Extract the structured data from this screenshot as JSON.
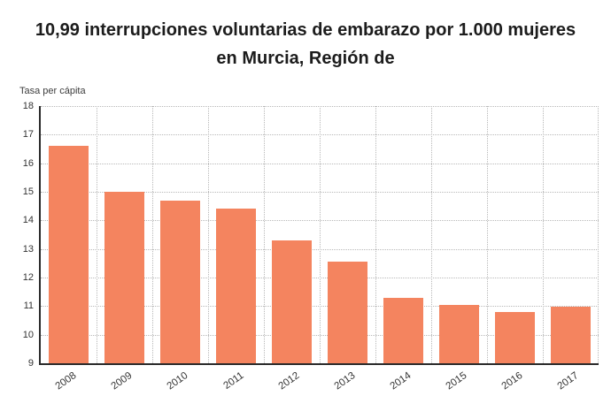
{
  "title": "10,99 interrupciones voluntarias de embarazo por 1.000 mujeres en Murcia, Región de",
  "chart_data": {
    "type": "bar",
    "title": "10,99 interrupciones voluntarias de embarazo por 1.000 mujeres en Murcia, Región de",
    "ylabel": "Tasa per cápita",
    "xlabel": "",
    "categories": [
      "2008",
      "2009",
      "2010",
      "2011",
      "2012",
      "2013",
      "2014",
      "2015",
      "2016",
      "2017"
    ],
    "values": [
      16.6,
      15.0,
      14.7,
      14.4,
      13.3,
      12.55,
      11.3,
      11.05,
      10.8,
      10.99
    ],
    "ylim": [
      9,
      18
    ],
    "yticks": [
      9,
      10,
      11,
      12,
      13,
      14,
      15,
      16,
      17,
      18
    ],
    "grid": "dotted",
    "legend": "none",
    "bar_color": "#f4845f",
    "axis_color": "#2a2a2a",
    "grid_color": "#b8b8b8",
    "text_color": "#333333"
  }
}
